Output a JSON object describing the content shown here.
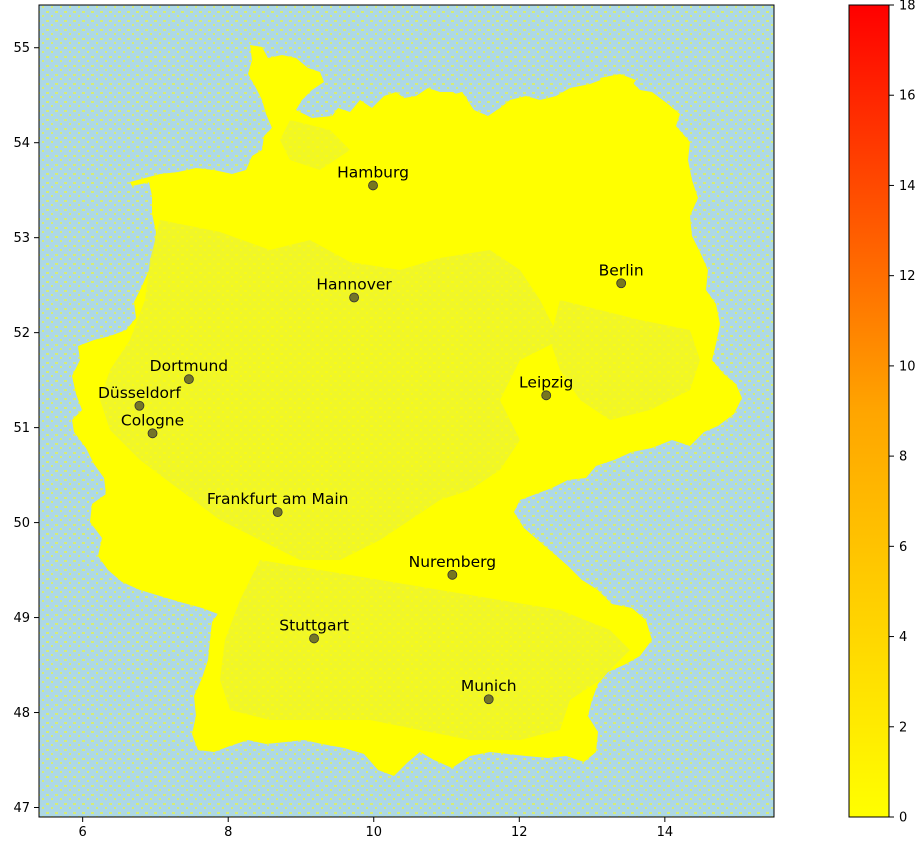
{
  "chart_data": {
    "type": "choropleth-map",
    "title": "",
    "xlabel": "",
    "ylabel": "",
    "xlim": [
      5.4,
      15.5
    ],
    "ylim": [
      46.9,
      55.45
    ],
    "xticks": [
      "6",
      "8",
      "10",
      "12",
      "14"
    ],
    "yticks": [
      "47",
      "48",
      "49",
      "50",
      "51",
      "52",
      "53",
      "54",
      "55"
    ],
    "background_color": "#add8e6",
    "region_color": "#ffff00",
    "region_shade_color": "#eef52e",
    "point_color": "#4a4a2a",
    "cities": [
      {
        "name": "Hamburg",
        "lon": 9.99,
        "lat": 53.55
      },
      {
        "name": "Berlin",
        "lon": 13.4,
        "lat": 52.52
      },
      {
        "name": "Hannover",
        "lon": 9.73,
        "lat": 52.37
      },
      {
        "name": "Dortmund",
        "lon": 7.46,
        "lat": 51.51
      },
      {
        "name": "Düsseldorf",
        "lon": 6.78,
        "lat": 51.23
      },
      {
        "name": "Cologne",
        "lon": 6.96,
        "lat": 50.94
      },
      {
        "name": "Leipzig",
        "lon": 12.37,
        "lat": 51.34
      },
      {
        "name": "Frankfurt am Main",
        "lon": 8.68,
        "lat": 50.11
      },
      {
        "name": "Nuremberg",
        "lon": 11.08,
        "lat": 49.45
      },
      {
        "name": "Stuttgart",
        "lon": 9.18,
        "lat": 48.78
      },
      {
        "name": "Munich",
        "lon": 11.58,
        "lat": 48.14
      }
    ],
    "colorbar": {
      "min": 0,
      "max": 18,
      "ticks": [
        "0",
        "2",
        "4",
        "6",
        "8",
        "10",
        "12",
        "14",
        "16",
        "18"
      ],
      "colors": [
        "#ffff00",
        "#ffa500",
        "#ff0000"
      ]
    },
    "grid": false,
    "legend": "none"
  }
}
